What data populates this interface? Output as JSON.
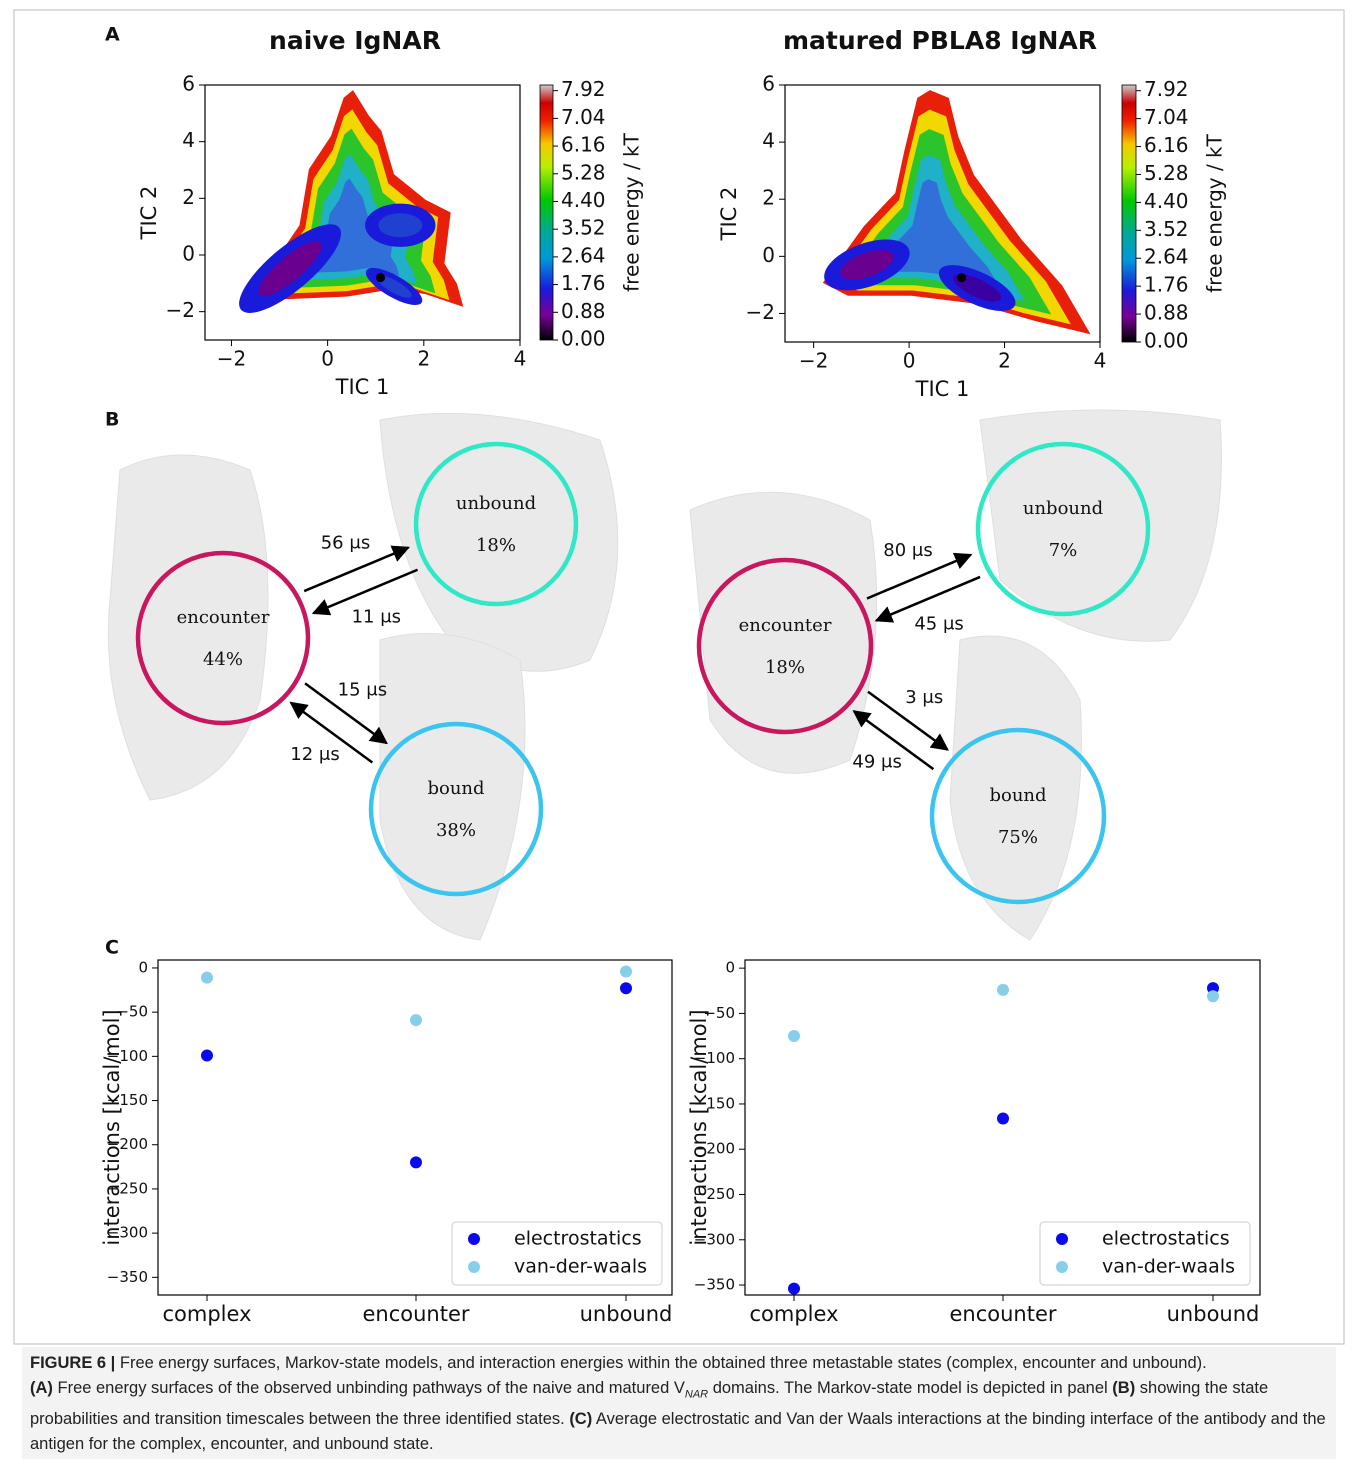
{
  "panel_labels": [
    "A",
    "B",
    "C"
  ],
  "chart_data": [
    {
      "type": "heatmap",
      "title": "naive IgNAR",
      "xlabel": "TIC 1",
      "ylabel": "TIC 2",
      "xlim": [
        -2.55,
        4
      ],
      "ylim": [
        -3,
        6
      ],
      "xticks": [
        {
          "value": -2,
          "label": "−2"
        },
        0,
        2,
        4
      ],
      "yticks": [
        {
          "value": -2,
          "label": "−2"
        },
        0,
        2,
        4,
        6
      ],
      "marker": {
        "x": 1.1,
        "y": -0.8
      },
      "colorbar": {
        "label": "free energy / kT",
        "lim": [
          0,
          8.1
        ],
        "ticks": [
          {
            "value": 0,
            "label": "0.00"
          },
          0.88,
          1.76,
          2.64,
          3.52,
          {
            "value": 4.4,
            "label": "4.40"
          },
          5.28,
          6.16,
          7.04,
          7.92
        ]
      }
    },
    {
      "type": "heatmap",
      "title": "matured PBLA8 IgNAR",
      "xlabel": "TIC 1",
      "ylabel": "TIC 2",
      "xlim": [
        -2.6,
        4
      ],
      "ylim": [
        -3,
        6
      ],
      "xticks": [
        {
          "value": -2,
          "label": "−2"
        },
        0,
        2,
        4
      ],
      "yticks": [
        {
          "value": -2,
          "label": "−2"
        },
        0,
        2,
        4,
        6
      ],
      "marker": {
        "x": 1.1,
        "y": -0.75
      },
      "colorbar": {
        "label": "free energy / kT",
        "lim": [
          0,
          8.1
        ],
        "ticks": [
          {
            "value": 0,
            "label": "0.00"
          },
          0.88,
          1.76,
          2.64,
          3.52,
          {
            "value": 4.4,
            "label": "4.40"
          },
          5.28,
          6.16,
          7.04,
          7.92
        ]
      }
    },
    {
      "type": "scatter",
      "ylabel": "interactions [kcal/mol]",
      "categories": [
        "complex",
        "encounter",
        "unbound"
      ],
      "series": [
        {
          "name": "electrostatics",
          "color": "#0a0aee",
          "values": [
            -99,
            -220,
            -23
          ]
        },
        {
          "name": "van-der-waals",
          "color": "#87ceeb",
          "values": [
            -11,
            -59,
            -4
          ]
        }
      ],
      "ylim": [
        -370,
        9
      ],
      "yticks": [
        {
          "value": -350,
          "label": "−350"
        },
        {
          "value": -300,
          "label": "−300"
        },
        {
          "value": -250,
          "label": "−250"
        },
        {
          "value": -200,
          "label": "−200"
        },
        {
          "value": -150,
          "label": "−150"
        },
        {
          "value": -100,
          "label": "−100"
        },
        {
          "value": -50,
          "label": "−50"
        },
        0
      ],
      "legend": "lower-right"
    },
    {
      "type": "scatter",
      "ylabel": "interactions [kcal/mol]",
      "categories": [
        "complex",
        "encounter",
        "unbound"
      ],
      "series": [
        {
          "name": "electrostatics",
          "color": "#0a0aee",
          "values": [
            -354,
            -166,
            -22
          ]
        },
        {
          "name": "van-der-waals",
          "color": "#87ceeb",
          "values": [
            -75,
            -24,
            -31
          ]
        }
      ],
      "ylim": [
        -361,
        9
      ],
      "yticks": [
        {
          "value": -350,
          "label": "−350"
        },
        {
          "value": -300,
          "label": "−300"
        },
        {
          "value": -250,
          "label": "−250"
        },
        {
          "value": -200,
          "label": "−200"
        },
        {
          "value": -150,
          "label": "−150"
        },
        {
          "value": -100,
          "label": "−100"
        },
        {
          "value": -50,
          "label": "−50"
        },
        0
      ],
      "legend": "lower-right"
    }
  ],
  "diagrams": [
    {
      "nodes": [
        {
          "label": "encounter",
          "value": "44%",
          "color": "#c8175e"
        },
        {
          "label": "unbound",
          "value": "18%",
          "color": "#2ee8c6"
        },
        {
          "label": "bound",
          "value": "38%",
          "color": "#3ac4ee"
        }
      ],
      "edges": [
        {
          "from": 0,
          "to": 1,
          "label": "56 μs"
        },
        {
          "from": 1,
          "to": 0,
          "label": "11 μs"
        },
        {
          "from": 0,
          "to": 2,
          "label": "15 μs"
        },
        {
          "from": 2,
          "to": 0,
          "label": "12 μs"
        }
      ]
    },
    {
      "nodes": [
        {
          "label": "encounter",
          "value": "18%",
          "color": "#c8175e"
        },
        {
          "label": "unbound",
          "value": "7%",
          "color": "#2ee8c6"
        },
        {
          "label": "bound",
          "value": "75%",
          "color": "#3ac4ee"
        }
      ],
      "edges": [
        {
          "from": 0,
          "to": 1,
          "label": "80 μs"
        },
        {
          "from": 1,
          "to": 0,
          "label": "45 μs"
        },
        {
          "from": 0,
          "to": 2,
          "label": "3 μs"
        },
        {
          "from": 2,
          "to": 0,
          "label": "49 μs"
        }
      ]
    }
  ],
  "caption": [
    [
      {
        "text": "FIGURE 6 |",
        "bold": true
      },
      {
        "text": " Free energy surfaces, Markov-state models, and interaction energies within the obtained three metastable states (complex, encounter and unbound)."
      }
    ],
    [
      {
        "text": "(A)",
        "bold": true
      },
      {
        "text": " Free energy surfaces of the observed unbinding pathways of the naive and matured V"
      },
      {
        "text": "NAR",
        "sub": true
      },
      {
        "text": " domains. The Markov-state model is depicted in panel "
      },
      {
        "text": "(B)",
        "bold": true
      },
      {
        "text": " showing the state probabilities and transition timescales between the three identified states. "
      },
      {
        "text": "(C)",
        "bold": true
      },
      {
        "text": " Average electrostatic and Van der Waals interactions at the binding interface of the antibody and the antigen for the complex, encounter, and unbound state."
      }
    ]
  ]
}
